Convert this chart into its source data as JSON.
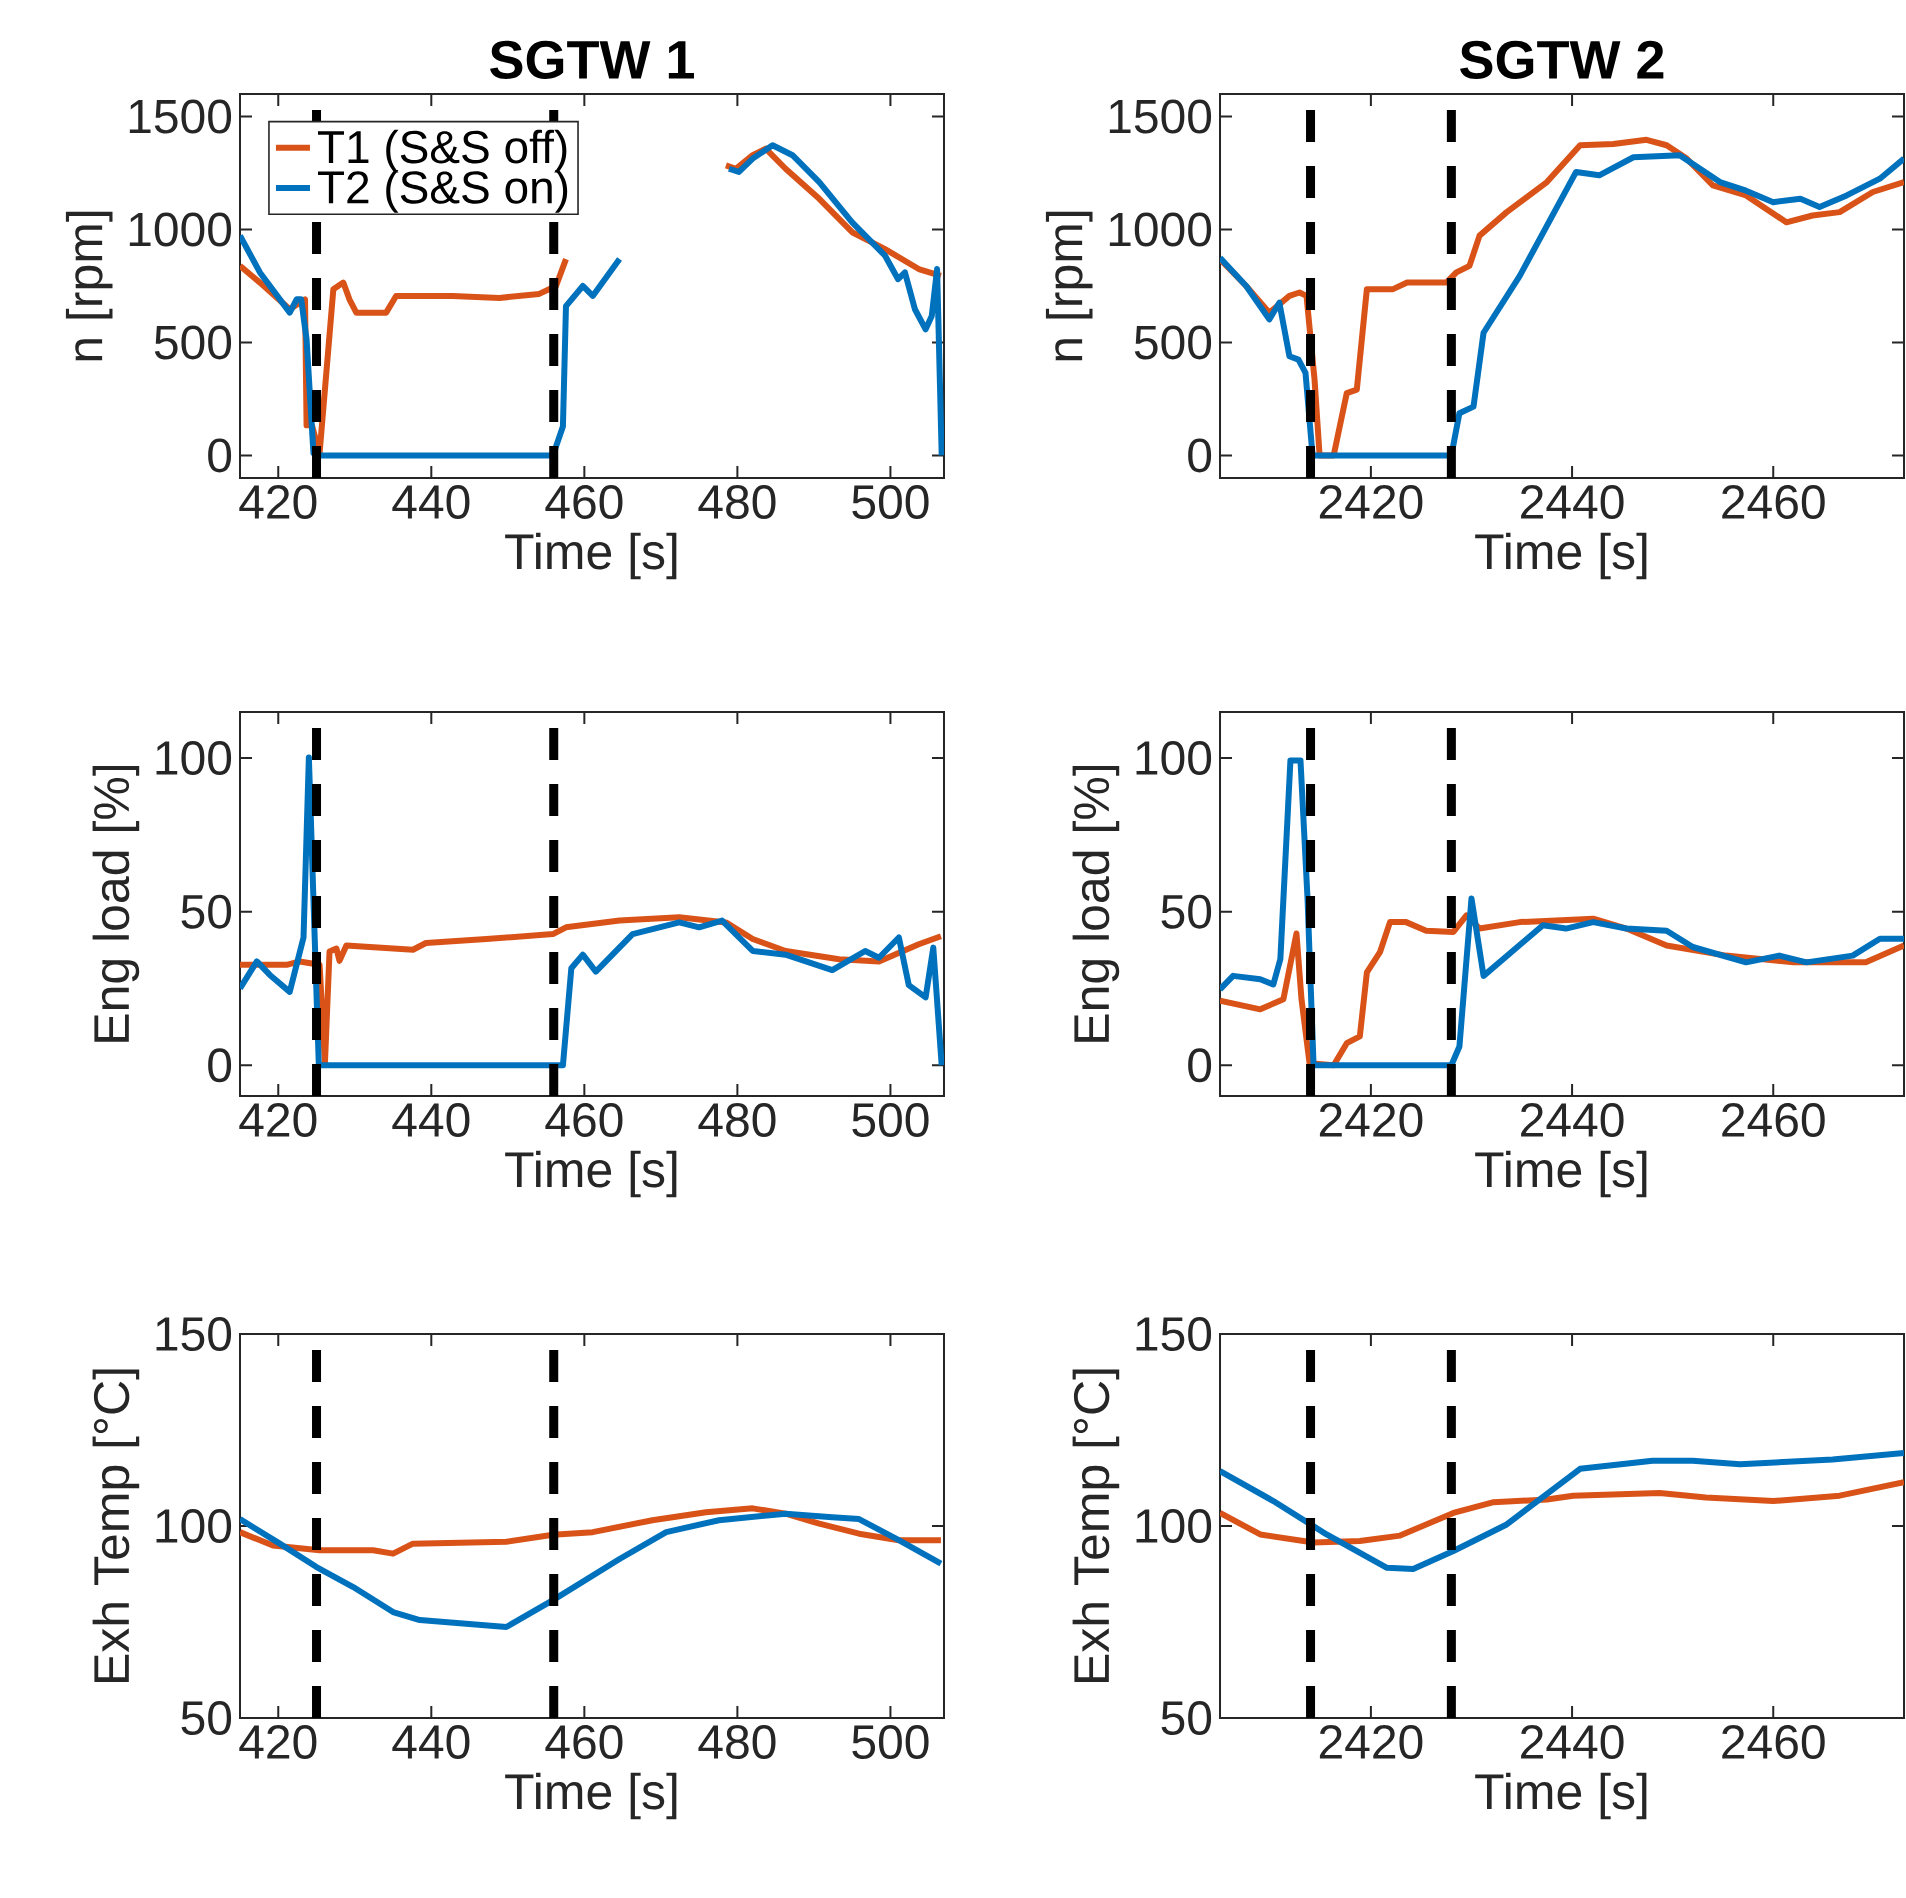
{
  "chart_data": [
    {
      "type": "line",
      "title": "SGTW 1",
      "xlabel": "Time [s]",
      "ylabel": "n [rpm]",
      "xlim": [
        415,
        507
      ],
      "ylim": [
        -100,
        1600
      ],
      "xticks": [
        420,
        440,
        460,
        480,
        500
      ],
      "yticks": [
        0,
        500,
        1000,
        1500
      ],
      "legend": "top left",
      "ref_lines": [
        {
          "axis": "x",
          "value": 425,
          "color": "#000000",
          "line_style": "dashed"
        },
        {
          "axis": "x",
          "value": 456,
          "color": "#000000",
          "line_style": "dashed"
        }
      ],
      "series": [
        {
          "name": "T1 (S&S off)",
          "color": "#d95319",
          "x": [
            415,
            417.6,
            421.5,
            423.5,
            423.7,
            424.4,
            425.4,
            427.2,
            428.5,
            429.3,
            430.2,
            434.1,
            435.4,
            442.8,
            448.9,
            454.1,
            456.3,
            457.6,
            468,
            478.5,
            479.8,
            482,
            483.7,
            486.3,
            490.7,
            495,
            499.3,
            503.7,
            506.6
          ],
          "values": [
            839,
            765,
            647,
            691,
            133,
            133,
            9,
            736,
            765,
            691,
            632,
            632,
            706,
            706,
            697,
            715,
            750,
            869,
            null,
            1284,
            1269,
            1329,
            1358,
            1269,
            1136,
            988,
            913,
            825,
            795
          ]
        },
        {
          "name": "T2 (S&S on)",
          "color": "#0072bd",
          "x": [
            415,
            417.6,
            421.5,
            422.4,
            423,
            423.7,
            424.6,
            425.3,
            455.9,
            457.2,
            457.6,
            459.8,
            461.1,
            464.6,
            471,
            478.9,
            480.2,
            482,
            484.6,
            487.2,
            490.7,
            495,
            499.3,
            501,
            501.9,
            503.2,
            504.6,
            505.4,
            506.1,
            506.7
          ],
          "values": [
            973,
            810,
            632,
            691,
            691,
            513,
            9,
            0,
            0,
            128,
            661,
            750,
            706,
            869,
            null,
            1269,
            1255,
            1314,
            1373,
            1329,
            1210,
            1032,
            884,
            780,
            810,
            647,
            558,
            617,
            825,
            0
          ]
        }
      ]
    },
    {
      "type": "line",
      "title": "SGTW 2",
      "xlabel": "Time [s]",
      "ylabel": "n [rpm]",
      "xlim": [
        2405,
        2473
      ],
      "ylim": [
        -100,
        1600
      ],
      "xticks": [
        2420,
        2440,
        2460
      ],
      "yticks": [
        0,
        500,
        1000,
        1500
      ],
      "ref_lines": [
        {
          "axis": "x",
          "value": 2414,
          "color": "#000000",
          "line_style": "dashed"
        },
        {
          "axis": "x",
          "value": 2428,
          "color": "#000000",
          "line_style": "dashed"
        }
      ],
      "series": [
        {
          "color": "#d95319",
          "x": [
            2405,
            2407.6,
            2409.9,
            2411.9,
            2412.9,
            2413.6,
            2414.4,
            2414.9,
            2416.3,
            2417.6,
            2418.6,
            2419.6,
            2422.2,
            2423.6,
            2427.5,
            2428.5,
            2429.8,
            2430.8,
            2433.5,
            2437.5,
            2440.8,
            2444.1,
            2447.4,
            2449.4,
            2451.4,
            2454,
            2457.3,
            2461.3,
            2463.9,
            2466.6,
            2469.9,
            2473
          ],
          "values": [
            869,
            750,
            632,
            706,
            721,
            706,
            335,
            0,
            0,
            276,
            291,
            736,
            736,
            765,
            765,
            810,
            839,
            973,
            1077,
            1210,
            1373,
            1379,
            1397,
            1373,
            1314,
            1195,
            1151,
            1032,
            1062,
            1077,
            1166,
            1210
          ]
        },
        {
          "color": "#0072bd",
          "x": [
            2405,
            2407.6,
            2409.9,
            2410.9,
            2411.9,
            2412.8,
            2413.5,
            2414.2,
            2428,
            2428.8,
            2430.2,
            2431.2,
            2434.8,
            2440.4,
            2442.7,
            2446.1,
            2450.7,
            2454.7,
            2457.3,
            2460,
            2462.7,
            2464.6,
            2467.3,
            2470.6,
            2473
          ],
          "values": [
            875,
            750,
            602,
            676,
            439,
            424,
            365,
            0,
            0,
            187,
            216,
            543,
            795,
            1255,
            1240,
            1320,
            1329,
            1210,
            1172,
            1121,
            1136,
            1100,
            1151,
            1225,
            1314
          ]
        }
      ]
    },
    {
      "type": "line",
      "xlabel": "Time [s]",
      "ylabel": "Eng load [%]",
      "xlim": [
        415,
        507
      ],
      "ylim": [
        -10,
        115
      ],
      "xticks": [
        420,
        440,
        460,
        480,
        500
      ],
      "yticks": [
        0,
        50,
        100
      ],
      "ref_lines": [
        {
          "axis": "x",
          "value": 425,
          "color": "#000000",
          "line_style": "dashed"
        },
        {
          "axis": "x",
          "value": 456,
          "color": "#000000",
          "line_style": "dashed"
        }
      ],
      "series": [
        {
          "color": "#d95319",
          "x": [
            415,
            421.1,
            422.8,
            425.4,
            426.1,
            426.7,
            427.6,
            428,
            428.9,
            437.6,
            439.3,
            447.2,
            455.9,
            457.6,
            464.6,
            472.4,
            478.5,
            482,
            486.3,
            493.3,
            498.5,
            503.7,
            506.6
          ],
          "values": [
            32.7,
            32.7,
            33.8,
            32.7,
            0.7,
            37,
            38,
            34,
            39,
            37.6,
            39.8,
            41.1,
            42.7,
            44.9,
            47.1,
            48.2,
            46.5,
            41.1,
            37.2,
            34.5,
            33.8,
            39.4,
            42
          ]
        },
        {
          "color": "#0072bd",
          "x": [
            415,
            417.2,
            418.9,
            421.5,
            423.3,
            424,
            425.3,
            457.2,
            458.3,
            459.8,
            461.5,
            466.3,
            472.4,
            475,
            478,
            482,
            486.3,
            492.4,
            496.7,
            498.5,
            501.1,
            502.4,
            504.6,
            505.6,
            506.7
          ],
          "values": [
            25,
            33.8,
            29.4,
            23.9,
            41.6,
            100.2,
            0,
            0,
            31.6,
            36,
            30.5,
            42.7,
            46.5,
            44.9,
            47.1,
            37.2,
            36,
            31,
            37.2,
            35,
            41.6,
            26.1,
            22.1,
            38.3,
            0
          ]
        }
      ]
    },
    {
      "type": "line",
      "xlabel": "Time [s]",
      "ylabel": "Eng load [%]",
      "xlim": [
        2405,
        2473
      ],
      "ylim": [
        -10,
        115
      ],
      "xticks": [
        2420,
        2440,
        2460
      ],
      "yticks": [
        0,
        50,
        100
      ],
      "ref_lines": [
        {
          "axis": "x",
          "value": 2414,
          "color": "#000000",
          "line_style": "dashed"
        },
        {
          "axis": "x",
          "value": 2428,
          "color": "#000000",
          "line_style": "dashed"
        }
      ],
      "series": [
        {
          "color": "#d95319",
          "x": [
            2405,
            2409,
            2411.3,
            2412.6,
            2413.1,
            2413.9,
            2416.3,
            2417.6,
            2418.9,
            2419.6,
            2420.9,
            2421.9,
            2423.5,
            2425.5,
            2428.2,
            2429.5,
            2430.8,
            2434.8,
            2442.1,
            2445.4,
            2449.4,
            2455.3,
            2462,
            2466.6,
            2469.2,
            2473
          ],
          "values": [
            21,
            18.2,
            21.5,
            42.9,
            21.5,
            0.7,
            0,
            7.2,
            9.4,
            30.2,
            36.8,
            46.6,
            46.6,
            43.8,
            43.4,
            48.8,
            44.5,
            46.6,
            47.7,
            44.5,
            39,
            35.7,
            33.5,
            33.5,
            33.5,
            39
          ]
        },
        {
          "color": "#0072bd",
          "x": [
            2405,
            2406.3,
            2409,
            2410.3,
            2411,
            2412,
            2413,
            2413.7,
            2414.3,
            2428,
            2428.8,
            2430,
            2431.2,
            2437.1,
            2439.4,
            2442.1,
            2445.4,
            2449.4,
            2452,
            2457.3,
            2460.6,
            2463.3,
            2467.9,
            2470.6,
            2473
          ],
          "values": [
            24.7,
            29.1,
            28,
            26.3,
            34.6,
            99.2,
            99.2,
            54.3,
            0,
            0,
            6.1,
            54.3,
            29.1,
            45.6,
            44.5,
            46.6,
            44.5,
            43.8,
            38.5,
            33.5,
            35.7,
            33.5,
            35.7,
            41.2,
            41.2
          ]
        }
      ]
    },
    {
      "type": "line",
      "xlabel": "Time [s]",
      "ylabel": "Exh Temp [°C]",
      "xlim": [
        415,
        507
      ],
      "ylim": [
        50,
        150
      ],
      "xticks": [
        420,
        440,
        460,
        480,
        500
      ],
      "yticks": [
        50,
        100,
        150
      ],
      "ref_lines": [
        {
          "axis": "x",
          "value": 425,
          "color": "#000000",
          "line_style": "dashed"
        },
        {
          "axis": "x",
          "value": 456,
          "color": "#000000",
          "line_style": "dashed"
        }
      ],
      "series": [
        {
          "color": "#d95319",
          "x": [
            415,
            419.3,
            425.4,
            432.4,
            435,
            437.6,
            449.8,
            455.9,
            461.1,
            468.9,
            475.9,
            482,
            486.3,
            490.7,
            495.9,
            501.1,
            506.6
          ],
          "values": [
            98.4,
            94.9,
            93.7,
            93.7,
            92.8,
            95.4,
            95.9,
            97.7,
            98.4,
            101.5,
            103.6,
            104.6,
            103.2,
            100.6,
            98,
            96.3,
            96.3
          ]
        },
        {
          "color": "#0072bd",
          "x": [
            415,
            420.2,
            425,
            429.8,
            435,
            438.5,
            449.8,
            455.9,
            464.6,
            470.7,
            477.6,
            486.3,
            492.4,
            495.9,
            501.1,
            506.6
          ],
          "values": [
            101.8,
            95.4,
            89.3,
            84.1,
            77.6,
            75.5,
            73.7,
            80.7,
            91.4,
            98.4,
            101.5,
            103.2,
            102.3,
            101.8,
            96.3,
            90.2
          ]
        }
      ]
    },
    {
      "type": "line",
      "xlabel": "Time [s]",
      "ylabel": "Exh Temp [°C]",
      "xlim": [
        2405,
        2473
      ],
      "ylim": [
        50,
        150
      ],
      "xticks": [
        2420,
        2440,
        2460
      ],
      "yticks": [
        50,
        100,
        150
      ],
      "ref_lines": [
        {
          "axis": "x",
          "value": 2414,
          "color": "#000000",
          "line_style": "dashed"
        },
        {
          "axis": "x",
          "value": 2428,
          "color": "#000000",
          "line_style": "dashed"
        }
      ],
      "series": [
        {
          "color": "#d95319",
          "x": [
            2405,
            2409,
            2414.3,
            2418.9,
            2422.9,
            2428.2,
            2432.2,
            2437.5,
            2440.1,
            2448.7,
            2453.3,
            2460,
            2466.6,
            2473
          ],
          "values": [
            103.4,
            97.8,
            95.7,
            96.1,
            97.5,
            103.4,
            106.2,
            106.9,
            107.9,
            108.6,
            107.4,
            106.5,
            107.9,
            111.4
          ]
        },
        {
          "color": "#0072bd",
          "x": [
            2405,
            2410.3,
            2415.6,
            2421.6,
            2424.2,
            2428.2,
            2433.5,
            2440.8,
            2448,
            2452,
            2456.7,
            2465.9,
            2473
          ],
          "values": [
            114.3,
            106.5,
            97.8,
            89.1,
            88.8,
            93.5,
            100.4,
            114.9,
            117,
            117,
            116.1,
            117.3,
            119
          ]
        }
      ]
    }
  ]
}
